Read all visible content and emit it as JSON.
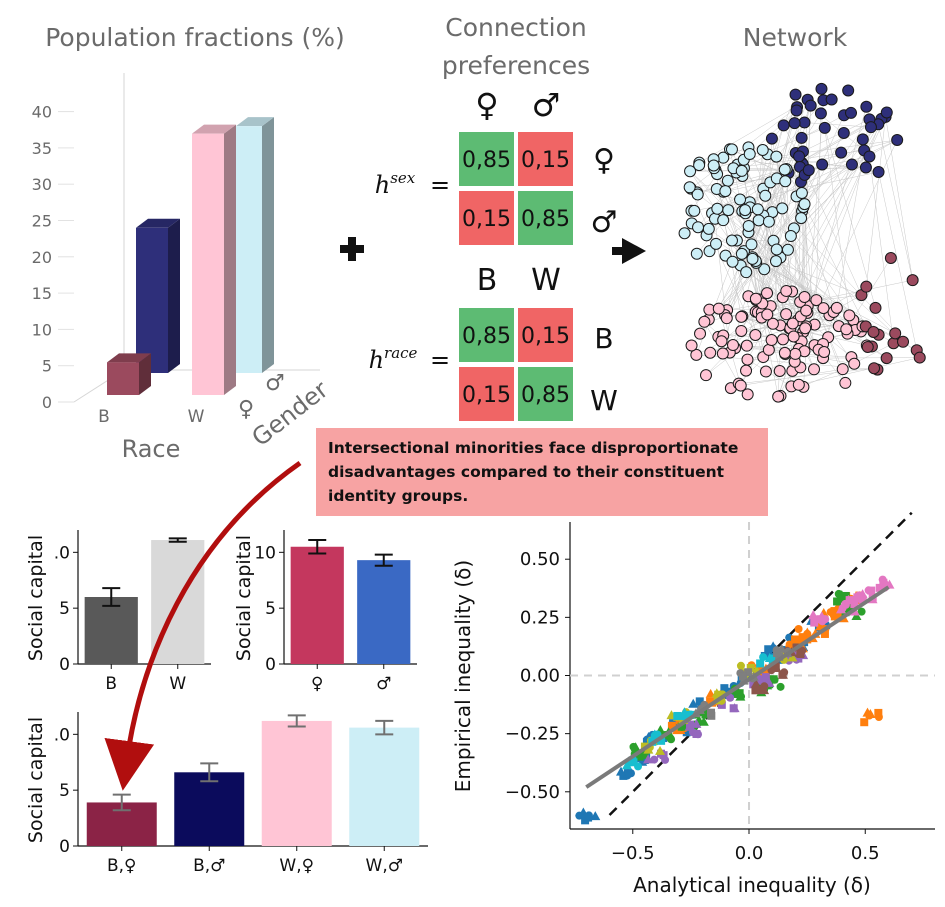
{
  "population": {
    "title": "Population fractions (%)",
    "y_ticks": [
      "0",
      "5",
      "10",
      "15",
      "20",
      "25",
      "30",
      "35",
      "40"
    ],
    "x_labels": {
      "race_b": "B",
      "race_w": "W",
      "gender_f": "♀",
      "gender_m": "♂"
    },
    "axis_race": "Race",
    "axis_gender": "Gender",
    "bars": [
      {
        "group": "race",
        "category": "B",
        "sex": "♀",
        "value": 4.5,
        "color": "#9b4a5e"
      },
      {
        "group": "race",
        "category": "B",
        "sex": "♂",
        "value": 20,
        "color": "#2e2f7a"
      },
      {
        "group": "race",
        "category": "W",
        "sex": "♀",
        "value": 36,
        "color": "#ffc5d5"
      },
      {
        "group": "race",
        "category": "W",
        "sex": "♂",
        "value": 34,
        "color": "#cdeef6"
      }
    ]
  },
  "preferences": {
    "title_line1": "Connection",
    "title_line2": "preferences",
    "sex_cols": [
      "♀",
      "♂"
    ],
    "sex_rows": [
      "♀",
      "♂"
    ],
    "sex_label": "h",
    "sex_sup": "sex",
    "sex_matrix": [
      [
        "0,85",
        "0,15"
      ],
      [
        "0,15",
        "0,85"
      ]
    ],
    "race_cols": [
      "B",
      "W"
    ],
    "race_rows": [
      "B",
      "W"
    ],
    "race_label": "h",
    "race_sup": "race",
    "race_matrix": [
      [
        "0,85",
        "0,15"
      ],
      [
        "0,15",
        "0,85"
      ]
    ],
    "equals": "=",
    "colors": {
      "high": "#5dbb73",
      "low": "#f06565"
    }
  },
  "network": {
    "title": "Network",
    "colors": {
      "b_f": "#9b4a5e",
      "b_m": "#2e2f7a",
      "w_f": "#ffc5d5",
      "w_m": "#cdeef6"
    }
  },
  "operators": {
    "plus": "+",
    "arrow": "→"
  },
  "callout": {
    "text": "Intersectional minorities face disproportionate disadvantages compared to their constituent identity groups."
  },
  "chart_data": [
    {
      "type": "bar",
      "title": "",
      "ylabel": "Social capital",
      "categories": [
        "B",
        "W"
      ],
      "values": [
        6.0,
        11.1
      ],
      "errors": [
        0.8,
        0.15
      ],
      "colors": [
        "#595959",
        "#d9d9d9"
      ],
      "y_ticks": [
        "0",
        "5",
        ".0"
      ],
      "ylim": [
        0,
        12
      ]
    },
    {
      "type": "bar",
      "title": "",
      "ylabel": "Social capital",
      "categories": [
        "♀",
        "♂"
      ],
      "values": [
        10.5,
        9.3
      ],
      "errors": [
        0.6,
        0.5
      ],
      "colors": [
        "#c4375e",
        "#3a69c4"
      ],
      "y_ticks": [
        "0",
        "5",
        "10"
      ],
      "ylim": [
        0,
        12
      ]
    },
    {
      "type": "bar",
      "title": "",
      "ylabel": "Social capital",
      "categories": [
        "B,♀",
        "B,♂",
        "W,♀",
        "W,♂"
      ],
      "values": [
        3.9,
        6.6,
        11.2,
        10.6
      ],
      "errors": [
        0.7,
        0.8,
        0.5,
        0.6
      ],
      "colors": [
        "#8b2346",
        "#0b0b5c",
        "#ffc5d5",
        "#cdeef6"
      ],
      "y_ticks": [
        "0",
        "5",
        ".0"
      ],
      "ylim": [
        0,
        12
      ]
    },
    {
      "type": "scatter",
      "title": "",
      "xlabel": "Analytical inequality (δ)",
      "ylabel": "Empirical inequality (δ)",
      "x_ticks": [
        "−0.5",
        "0.0",
        "0.5"
      ],
      "y_ticks": [
        "−0.50",
        "−0.25",
        "0.00",
        "0.25",
        "0.50"
      ],
      "xlim": [
        -0.77,
        0.8
      ],
      "ylim": [
        -0.66,
        0.66
      ],
      "fit_line": {
        "x": [
          -0.7,
          0.6
        ],
        "y": [
          -0.48,
          0.38
        ]
      },
      "identity_line": {
        "x": [
          -0.6,
          0.7
        ],
        "y": [
          -0.6,
          0.7
        ]
      },
      "series": [
        {
          "name": "blue",
          "color": "#1f77b4",
          "points": [
            [
              -0.69,
              -0.6
            ],
            [
              -0.45,
              -0.35
            ],
            [
              -0.4,
              -0.27
            ],
            [
              -0.3,
              -0.22
            ],
            [
              -0.2,
              -0.13
            ],
            [
              -0.1,
              -0.07
            ],
            [
              0.0,
              -0.01
            ],
            [
              0.1,
              0.06
            ],
            [
              0.2,
              0.14
            ],
            [
              0.3,
              0.22
            ],
            [
              0.12,
              0.11
            ],
            [
              -0.52,
              -0.42
            ]
          ]
        },
        {
          "name": "orange",
          "color": "#ff7f0e",
          "points": [
            [
              -0.3,
              -0.22
            ],
            [
              -0.15,
              -0.1
            ],
            [
              0.05,
              0.03
            ],
            [
              0.2,
              0.13
            ],
            [
              0.3,
              0.2
            ],
            [
              0.38,
              0.27
            ],
            [
              0.45,
              0.33
            ],
            [
              0.52,
              -0.18
            ],
            [
              0.35,
              0.25
            ],
            [
              0.25,
              0.18
            ]
          ]
        },
        {
          "name": "green",
          "color": "#2ca02c",
          "points": [
            [
              -0.48,
              -0.33
            ],
            [
              -0.35,
              -0.25
            ],
            [
              -0.2,
              -0.18
            ],
            [
              -0.05,
              -0.08
            ],
            [
              0.1,
              -0.03
            ],
            [
              0.4,
              0.33
            ],
            [
              0.45,
              0.28
            ],
            [
              0.05,
              -0.05
            ],
            [
              -0.25,
              -0.2
            ]
          ]
        },
        {
          "name": "purple",
          "color": "#9467bd",
          "points": [
            [
              -0.4,
              -0.35
            ],
            [
              -0.25,
              -0.23
            ],
            [
              -0.1,
              -0.12
            ],
            [
              0.05,
              -0.02
            ],
            [
              0.2,
              0.08
            ]
          ]
        },
        {
          "name": "olive",
          "color": "#bcbd22",
          "points": [
            [
              -0.42,
              -0.3
            ],
            [
              -0.3,
              -0.17
            ],
            [
              -0.15,
              -0.1
            ],
            [
              0.0,
              0.02
            ],
            [
              0.15,
              0.08
            ]
          ]
        },
        {
          "name": "cyan",
          "color": "#17becf",
          "points": [
            [
              -0.5,
              -0.37
            ],
            [
              -0.38,
              -0.27
            ],
            [
              -0.28,
              -0.18
            ],
            [
              0.08,
              0.06
            ]
          ]
        },
        {
          "name": "pink",
          "color": "#e377c2",
          "points": [
            [
              0.3,
              0.25
            ],
            [
              0.42,
              0.3
            ],
            [
              0.5,
              0.35
            ],
            [
              0.57,
              0.4
            ],
            [
              0.45,
              0.32
            ]
          ]
        },
        {
          "name": "brown",
          "color": "#8c564b",
          "points": [
            [
              0.05,
              -0.06
            ],
            [
              0.12,
              0.02
            ],
            [
              0.2,
              0.1
            ]
          ]
        },
        {
          "name": "gray",
          "color": "#7f7f7f",
          "points": [
            [
              -0.2,
              -0.15
            ],
            [
              0.0,
              0.0
            ],
            [
              0.15,
              0.1
            ]
          ]
        }
      ]
    }
  ]
}
